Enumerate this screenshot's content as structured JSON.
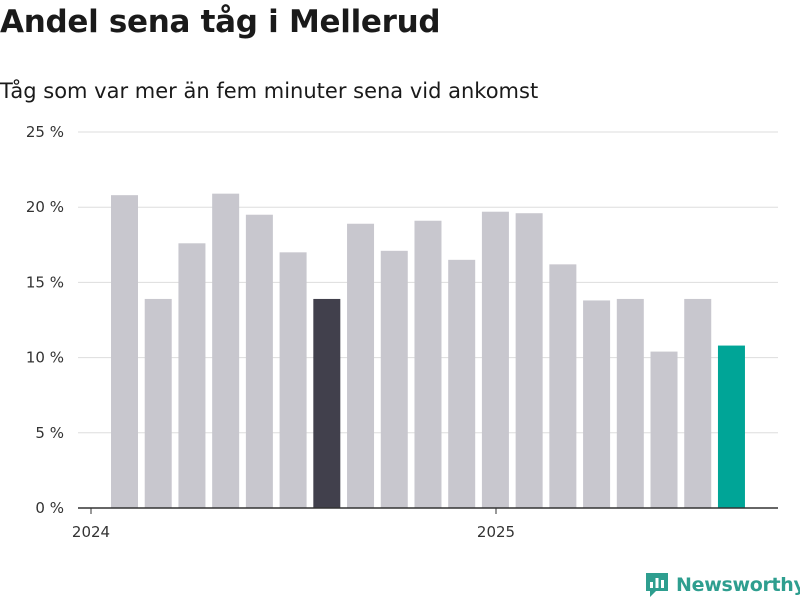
{
  "title": "Andel sena tåg i Mellerud",
  "subtitle": "Tåg som var mer än fem minuter sena vid ankomst",
  "brand": {
    "name": "Newsworthy",
    "icon": "newsworthy-logo-icon",
    "color": "#2e9e8f"
  },
  "colors": {
    "bar": "#c8c7ce",
    "highlight_dark": "#41404c",
    "highlight_latest": "#00a597",
    "grid": "#dddddd",
    "axis": "#333333"
  },
  "chart_data": {
    "type": "bar",
    "title": "Andel sena tåg i Mellerud",
    "subtitle": "Tåg som var mer än fem minuter sena vid ankomst",
    "xlabel": "",
    "ylabel": "",
    "ylim": [
      0,
      25
    ],
    "y_ticks": [
      0,
      5,
      10,
      15,
      20,
      25
    ],
    "y_tick_labels": [
      "0 %",
      "5 %",
      "10 %",
      "15 %",
      "20 %",
      "25 %"
    ],
    "x_tick_labels": [
      {
        "label": "2024",
        "at_index": 0
      },
      {
        "label": "2025",
        "at_index": 12
      }
    ],
    "categories": [
      "2024-01",
      "2024-02",
      "2024-03",
      "2024-04",
      "2024-05",
      "2024-06",
      "2024-07",
      "2024-08",
      "2024-09",
      "2024-10",
      "2024-11",
      "2024-12",
      "2025-01",
      "2025-02",
      "2025-03",
      "2025-04",
      "2025-05",
      "2025-06",
      "2025-07"
    ],
    "values": [
      20.8,
      13.9,
      17.6,
      20.9,
      19.5,
      17.0,
      13.9,
      18.9,
      17.1,
      19.1,
      16.5,
      19.7,
      19.6,
      16.2,
      13.8,
      13.9,
      10.4,
      13.9,
      10.8
    ],
    "highlight": {
      "dark_index": 6,
      "latest_index": 18
    },
    "grid": true,
    "legend": "none"
  }
}
